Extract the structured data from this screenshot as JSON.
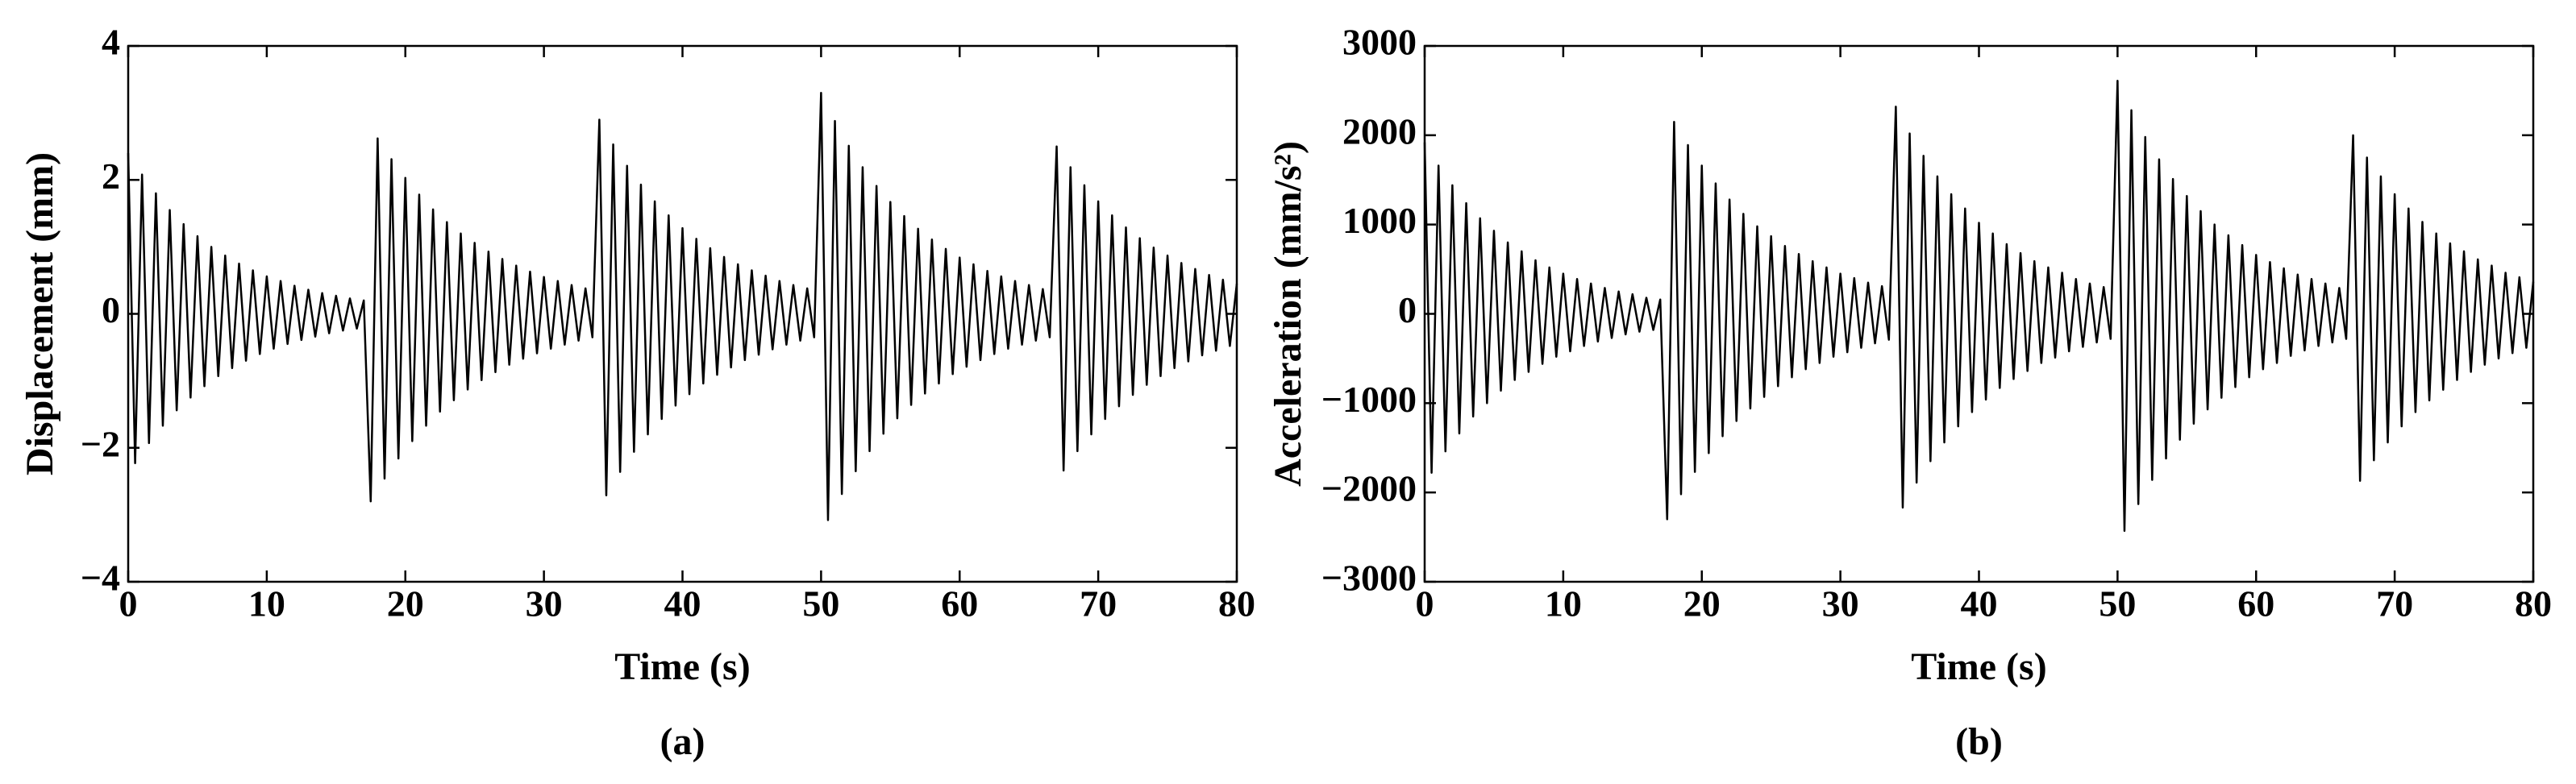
{
  "chart_data": [
    {
      "type": "line",
      "caption": "(a)",
      "xlabel": "Time (s)",
      "ylabel": "Displacement (mm)",
      "xlim": [
        0,
        80
      ],
      "xticks": [
        0,
        10,
        20,
        30,
        40,
        50,
        60,
        70,
        80
      ],
      "ylim": [
        -4,
        4
      ],
      "yticks": [
        {
          "value": -4,
          "label": "−4"
        },
        {
          "value": -2,
          "label": "−2"
        },
        0,
        2,
        4
      ],
      "series": [
        {
          "color": "#000000",
          "x": [
            0,
            0.5,
            1,
            1.5,
            2,
            2.5,
            3,
            3.5,
            4,
            4.5,
            5,
            5.5,
            6,
            6.5,
            7,
            7.5,
            8,
            8.5,
            9,
            9.5,
            10,
            10.5,
            11,
            11.5,
            12,
            12.5,
            13,
            13.5,
            14,
            14.5,
            15,
            15.5,
            16,
            16.5,
            17,
            17.5,
            18,
            18.5,
            19,
            19.5,
            20,
            20.5,
            21,
            21.5,
            22,
            22.5,
            23,
            23.5,
            24,
            24.5,
            25,
            25.5,
            26,
            26.5,
            27,
            27.5,
            28,
            28.5,
            29,
            29.5,
            30,
            30.5,
            31,
            31.5,
            32,
            32.5,
            33,
            33.5,
            34,
            34.5,
            35,
            35.5,
            36,
            36.5,
            37,
            37.5,
            38,
            38.5,
            39,
            39.5,
            40,
            40.5,
            41,
            41.5,
            42,
            42.5,
            43,
            43.5,
            44,
            44.5,
            45,
            45.5,
            46,
            46.5,
            47,
            47.5,
            48,
            48.5,
            49,
            49.5,
            50,
            50.5,
            51,
            51.5,
            52,
            52.5,
            53,
            53.5,
            54,
            54.5,
            55,
            55.5,
            56,
            56.5,
            57,
            57.5,
            58,
            58.5,
            59,
            59.5,
            60,
            60.5,
            61,
            61.5,
            62,
            62.5,
            63,
            63.5,
            64,
            64.5,
            65,
            65.5,
            66,
            66.5,
            67,
            67.5,
            68,
            68.5,
            69,
            69.5,
            70,
            70.5,
            71,
            71.5,
            72,
            72.5,
            73,
            73.5,
            74,
            74.5,
            75,
            75.5,
            76,
            76.5,
            77,
            77.5,
            78,
            78.5,
            79,
            79.5,
            80
          ],
          "values": [
            2.4,
            -2.23,
            2.08,
            -1.93,
            1.8,
            -1.67,
            1.55,
            -1.44,
            1.34,
            -1.25,
            1.16,
            -1.08,
            1.0,
            -0.93,
            0.87,
            -0.81,
            0.75,
            -0.7,
            0.65,
            -0.6,
            0.56,
            -0.52,
            0.49,
            -0.45,
            0.42,
            -0.39,
            0.36,
            -0.34,
            0.31,
            -0.29,
            0.27,
            -0.25,
            0.23,
            -0.22,
            0.2,
            -2.8,
            2.62,
            -2.46,
            2.31,
            -2.16,
            2.03,
            -1.9,
            1.78,
            -1.67,
            1.56,
            -1.46,
            1.37,
            -1.29,
            1.2,
            -1.13,
            1.06,
            -0.99,
            0.93,
            -0.87,
            0.82,
            -0.76,
            0.72,
            -0.67,
            0.63,
            -0.59,
            0.55,
            -0.52,
            0.49,
            -0.46,
            0.43,
            -0.4,
            0.38,
            -0.35,
            2.9,
            -2.71,
            2.53,
            -2.36,
            2.21,
            -2.06,
            1.93,
            -1.8,
            1.68,
            -1.57,
            1.47,
            -1.37,
            1.28,
            -1.2,
            1.12,
            -1.04,
            0.98,
            -0.91,
            0.85,
            -0.8,
            0.74,
            -0.69,
            0.65,
            -0.61,
            0.57,
            -0.53,
            0.49,
            -0.46,
            0.43,
            -0.4,
            0.38,
            -0.35,
            3.3,
            -3.08,
            2.88,
            -2.69,
            2.51,
            -2.35,
            2.19,
            -2.05,
            1.91,
            -1.79,
            1.67,
            -1.56,
            1.46,
            -1.36,
            1.27,
            -1.19,
            1.11,
            -1.04,
            0.97,
            -0.9,
            0.84,
            -0.79,
            0.74,
            -0.69,
            0.64,
            -0.6,
            0.56,
            -0.52,
            0.49,
            -0.46,
            0.43,
            -0.4,
            0.37,
            -0.35,
            2.5,
            -2.34,
            2.19,
            -2.05,
            1.92,
            -1.8,
            1.68,
            -1.57,
            1.47,
            -1.38,
            1.29,
            -1.21,
            1.13,
            -1.06,
            0.99,
            -0.93,
            0.87,
            -0.81,
            0.76,
            -0.71,
            0.67,
            -0.62,
            0.58,
            -0.55,
            0.51,
            -0.48,
            0.45
          ]
        }
      ]
    },
    {
      "type": "line",
      "caption": "(b)",
      "xlabel": "Time (s)",
      "ylabel": "Acceleration (mm/s²)",
      "xlim": [
        0,
        80
      ],
      "xticks": [
        0,
        10,
        20,
        30,
        40,
        50,
        60,
        70,
        80
      ],
      "ylim": [
        -3000,
        3000
      ],
      "yticks": [
        {
          "value": -3000,
          "label": "−3000"
        },
        {
          "value": -2000,
          "label": "−2000"
        },
        {
          "value": -1000,
          "label": "−1000"
        },
        0,
        1000,
        2000,
        3000
      ],
      "series": [
        {
          "color": "#000000",
          "x": [
            0,
            0.5,
            1,
            1.5,
            2,
            2.5,
            3,
            3.5,
            4,
            4.5,
            5,
            5.5,
            6,
            6.5,
            7,
            7.5,
            8,
            8.5,
            9,
            9.5,
            10,
            10.5,
            11,
            11.5,
            12,
            12.5,
            13,
            13.5,
            14,
            14.5,
            15,
            15.5,
            16,
            16.5,
            17,
            17.5,
            18,
            18.5,
            19,
            19.5,
            20,
            20.5,
            21,
            21.5,
            22,
            22.5,
            23,
            23.5,
            24,
            24.5,
            25,
            25.5,
            26,
            26.5,
            27,
            27.5,
            28,
            28.5,
            29,
            29.5,
            30,
            30.5,
            31,
            31.5,
            32,
            32.5,
            33,
            33.5,
            34,
            34.5,
            35,
            35.5,
            36,
            36.5,
            37,
            37.5,
            38,
            38.5,
            39,
            39.5,
            40,
            40.5,
            41,
            41.5,
            42,
            42.5,
            43,
            43.5,
            44,
            44.5,
            45,
            45.5,
            46,
            46.5,
            47,
            47.5,
            48,
            48.5,
            49,
            49.5,
            50,
            50.5,
            51,
            51.5,
            52,
            52.5,
            53,
            53.5,
            54,
            54.5,
            55,
            55.5,
            56,
            56.5,
            57,
            57.5,
            58,
            58.5,
            59,
            59.5,
            60,
            60.5,
            61,
            61.5,
            62,
            62.5,
            63,
            63.5,
            64,
            64.5,
            65,
            65.5,
            66,
            66.5,
            67,
            67.5,
            68,
            68.5,
            69,
            69.5,
            70,
            70.5,
            71,
            71.5,
            72,
            72.5,
            73,
            73.5,
            74,
            74.5,
            75,
            75.5,
            76,
            76.5,
            77,
            77.5,
            78,
            78.5,
            79,
            79.5,
            80
          ],
          "values": [
            1920,
            -1780,
            1660,
            -1540,
            1440,
            -1340,
            1240,
            -1150,
            1070,
            -1000,
            930,
            -860,
            800,
            -740,
            700,
            -650,
            600,
            -560,
            520,
            -480,
            450,
            -420,
            390,
            -360,
            340,
            -310,
            290,
            -270,
            250,
            -230,
            220,
            -200,
            180,
            -180,
            160,
            -2300,
            2150,
            -2020,
            1890,
            -1770,
            1660,
            -1560,
            1460,
            -1370,
            1280,
            -1200,
            1120,
            -1060,
            980,
            -930,
            870,
            -810,
            760,
            -710,
            670,
            -620,
            590,
            -550,
            520,
            -480,
            450,
            -430,
            400,
            -380,
            350,
            -330,
            310,
            -290,
            2320,
            -2170,
            2020,
            -1890,
            1770,
            -1650,
            1540,
            -1440,
            1340,
            -1260,
            1180,
            -1100,
            1020,
            -960,
            900,
            -830,
            780,
            -730,
            680,
            -640,
            590,
            -550,
            520,
            -490,
            460,
            -420,
            390,
            -370,
            340,
            -320,
            300,
            -280,
            2610,
            -2430,
            2280,
            -2130,
            1980,
            -1860,
            1730,
            -1620,
            1510,
            -1410,
            1320,
            -1230,
            1150,
            -1070,
            1000,
            -940,
            880,
            -820,
            770,
            -710,
            660,
            -620,
            580,
            -550,
            510,
            -470,
            440,
            -410,
            390,
            -360,
            340,
            -320,
            290,
            -280,
            2000,
            -1870,
            1750,
            -1640,
            1540,
            -1440,
            1340,
            -1260,
            1180,
            -1100,
            1030,
            -970,
            900,
            -850,
            790,
            -740,
            700,
            -650,
            610,
            -570,
            540,
            -500,
            460,
            -440,
            410,
            -380,
            360
          ]
        }
      ]
    }
  ]
}
